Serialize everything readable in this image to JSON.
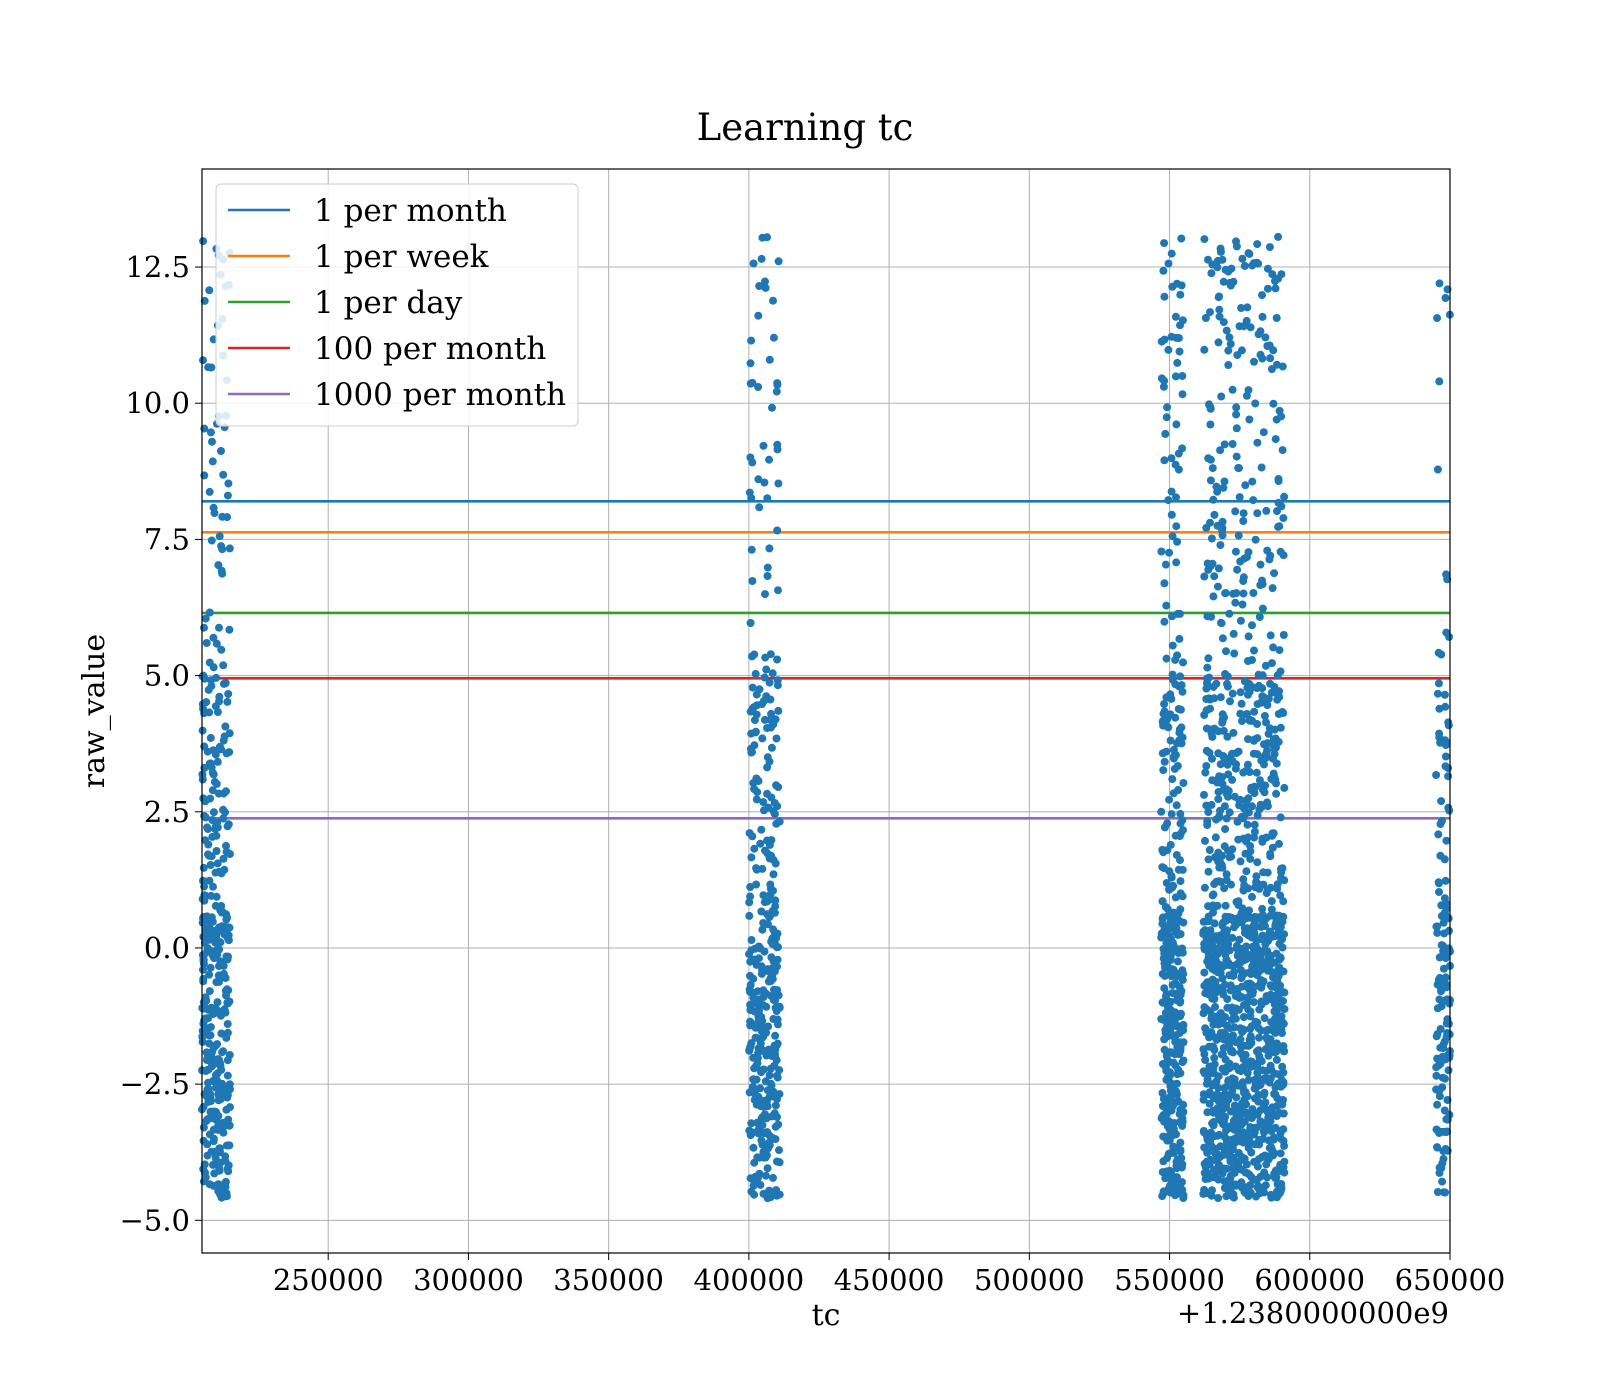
{
  "chart_data": {
    "type": "scatter",
    "title": "Learning tc",
    "xlabel": "tc",
    "ylabel": "raw_value",
    "x_offset_text": "+1.2380000000e9",
    "xlim": [
      205000,
      650000
    ],
    "ylim": [
      -5.6,
      14.3
    ],
    "x_ticks": [
      250000,
      300000,
      350000,
      400000,
      450000,
      500000,
      550000,
      600000,
      650000
    ],
    "x_tick_labels": [
      "250000",
      "300000",
      "350000",
      "400000",
      "450000",
      "500000",
      "550000",
      "600000",
      "650000"
    ],
    "y_ticks": [
      -5.0,
      -2.5,
      0.0,
      2.5,
      5.0,
      7.5,
      10.0,
      12.5
    ],
    "y_tick_labels": [
      "−5.0",
      "−2.5",
      "0.0",
      "2.5",
      "5.0",
      "7.5",
      "10.0",
      "12.5"
    ],
    "grid": true,
    "legend_position": "top-left",
    "point_color": "#1f77b4",
    "scatter_clusters": [
      {
        "x_range": [
          205000,
          215000
        ],
        "n": 420,
        "seed": 11
      },
      {
        "x_range": [
          400000,
          411000
        ],
        "n": 380,
        "seed": 23
      },
      {
        "x_range": [
          547000,
          555000
        ],
        "n": 420,
        "seed": 37
      },
      {
        "x_range": [
          562000,
          591000
        ],
        "n": 1350,
        "seed": 41
      },
      {
        "x_range": [
          645000,
          650000
        ],
        "n": 150,
        "seed": 53
      }
    ],
    "thresholds": [
      {
        "label": "1 per month",
        "y": 8.2,
        "color": "#1f77b4"
      },
      {
        "label": "1 per week",
        "y": 7.63,
        "color": "#ff7f0e"
      },
      {
        "label": "1 per day",
        "y": 6.15,
        "color": "#2ca02c"
      },
      {
        "label": "100 per month",
        "y": 4.95,
        "color": "#d62728"
      },
      {
        "label": "1000 per month",
        "y": 2.38,
        "color": "#9467bd"
      }
    ]
  }
}
